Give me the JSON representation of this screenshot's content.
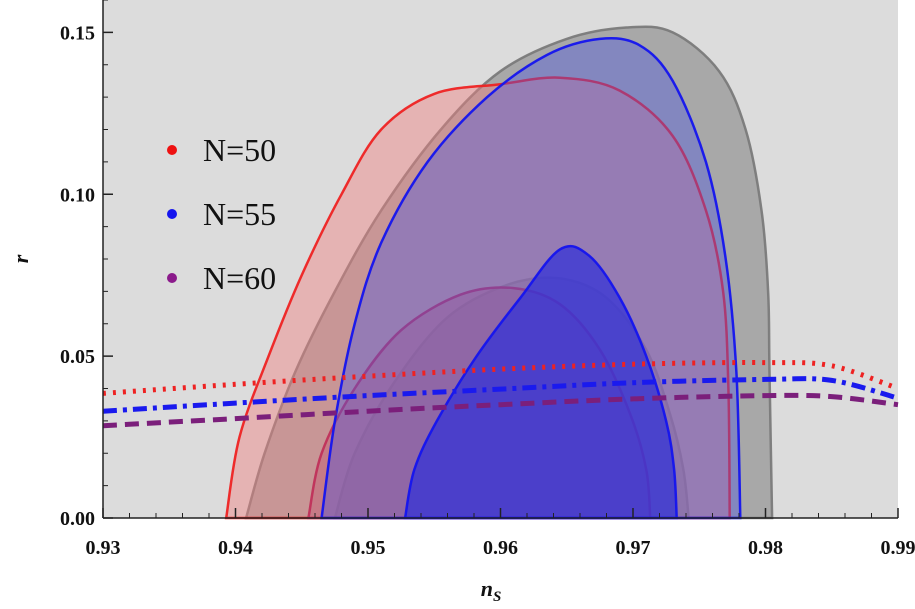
{
  "chart_data": {
    "type": "contour",
    "title": "",
    "xlabel": "n",
    "xlabel_subscript": "S",
    "ylabel": "r",
    "xlim": [
      0.93,
      0.99
    ],
    "ylim": [
      0.0,
      0.16
    ],
    "grid": false,
    "background": "#dcdcdc",
    "x_ticks": [
      "0.93",
      "0.94",
      "0.95",
      "0.96",
      "0.97",
      "0.98",
      "0.99"
    ],
    "y_ticks": [
      "0.00",
      "0.05",
      "0.10",
      "0.15"
    ],
    "legend": {
      "placement": "left",
      "entries": [
        {
          "label": "N=50",
          "color": "#ee1111"
        },
        {
          "label": "N=55",
          "color": "#1515ee"
        },
        {
          "label": "N=60",
          "color": "#8b1a8b"
        }
      ]
    },
    "contours": [
      {
        "name": "gray-95",
        "fill": "#8c8c8c",
        "fill_opacity": 0.65,
        "stroke": "#7a7a7a",
        "points": [
          [
            0.9408,
            0
          ],
          [
            0.9422,
            0.02
          ],
          [
            0.9445,
            0.045
          ],
          [
            0.9475,
            0.07
          ],
          [
            0.951,
            0.095
          ],
          [
            0.9555,
            0.12
          ],
          [
            0.96,
            0.138
          ],
          [
            0.965,
            0.148
          ],
          [
            0.9695,
            0.1515
          ],
          [
            0.973,
            0.15
          ],
          [
            0.9765,
            0.138
          ],
          [
            0.9785,
            0.12
          ],
          [
            0.9797,
            0.095
          ],
          [
            0.9802,
            0.07
          ],
          [
            0.9803,
            0.045
          ],
          [
            0.9805,
            0
          ]
        ]
      },
      {
        "name": "gray-68",
        "fill": "#7d7d7d",
        "fill_opacity": 0.55,
        "stroke": "#7a7a7a",
        "points": [
          [
            0.9475,
            0
          ],
          [
            0.949,
            0.02
          ],
          [
            0.952,
            0.042
          ],
          [
            0.956,
            0.062
          ],
          [
            0.9605,
            0.072
          ],
          [
            0.9645,
            0.074
          ],
          [
            0.968,
            0.068
          ],
          [
            0.971,
            0.052
          ],
          [
            0.9728,
            0.032
          ],
          [
            0.9738,
            0.015
          ],
          [
            0.9742,
            0
          ]
        ]
      },
      {
        "name": "red-95",
        "fill": "#f08080",
        "fill_opacity": 0.45,
        "stroke": "#ee2222",
        "points": [
          [
            0.9393,
            0
          ],
          [
            0.9403,
            0.025
          ],
          [
            0.9425,
            0.05
          ],
          [
            0.945,
            0.075
          ],
          [
            0.948,
            0.1
          ],
          [
            0.951,
            0.12
          ],
          [
            0.955,
            0.131
          ],
          [
            0.96,
            0.134
          ],
          [
            0.9645,
            0.136
          ],
          [
            0.969,
            0.132
          ],
          [
            0.973,
            0.118
          ],
          [
            0.9755,
            0.095
          ],
          [
            0.9768,
            0.07
          ],
          [
            0.9772,
            0.04
          ],
          [
            0.9773,
            0
          ]
        ]
      },
      {
        "name": "red-68",
        "fill": "#c45c74",
        "fill_opacity": 0.45,
        "stroke": "#c0305a",
        "points": [
          [
            0.9455,
            0
          ],
          [
            0.9465,
            0.02
          ],
          [
            0.949,
            0.04
          ],
          [
            0.9525,
            0.058
          ],
          [
            0.957,
            0.069
          ],
          [
            0.961,
            0.071
          ],
          [
            0.9645,
            0.066
          ],
          [
            0.9675,
            0.052
          ],
          [
            0.9698,
            0.032
          ],
          [
            0.971,
            0.015
          ],
          [
            0.9713,
            0
          ]
        ]
      },
      {
        "name": "blue-95",
        "fill": "#4b55e0",
        "fill_opacity": 0.4,
        "stroke": "#1414ee",
        "points": [
          [
            0.9465,
            0
          ],
          [
            0.9475,
            0.03
          ],
          [
            0.949,
            0.06
          ],
          [
            0.951,
            0.085
          ],
          [
            0.9545,
            0.11
          ],
          [
            0.959,
            0.13
          ],
          [
            0.9635,
            0.143
          ],
          [
            0.9675,
            0.148
          ],
          [
            0.9705,
            0.146
          ],
          [
            0.973,
            0.135
          ],
          [
            0.9755,
            0.11
          ],
          [
            0.977,
            0.08
          ],
          [
            0.9778,
            0.045
          ],
          [
            0.9781,
            0
          ]
        ]
      },
      {
        "name": "blue-68",
        "fill": "#3030d8",
        "fill_opacity": 0.72,
        "stroke": "#1414ee",
        "points": [
          [
            0.9528,
            0
          ],
          [
            0.9535,
            0.015
          ],
          [
            0.9552,
            0.03
          ],
          [
            0.9582,
            0.05
          ],
          [
            0.9615,
            0.068
          ],
          [
            0.9645,
            0.083
          ],
          [
            0.9667,
            0.081
          ],
          [
            0.969,
            0.068
          ],
          [
            0.971,
            0.05
          ],
          [
            0.9725,
            0.03
          ],
          [
            0.9731,
            0.015
          ],
          [
            0.9733,
            0
          ]
        ]
      }
    ],
    "series": [
      {
        "name": "N=50",
        "color": "#ee2222",
        "dash": "dotted",
        "x": [
          0.93,
          0.94,
          0.95,
          0.96,
          0.97,
          0.98,
          0.985,
          0.99
        ],
        "y": [
          0.0385,
          0.0413,
          0.0438,
          0.046,
          0.0475,
          0.048,
          0.047,
          0.04
        ]
      },
      {
        "name": "N=55",
        "color": "#1a1aee",
        "dash": "dashdot",
        "x": [
          0.93,
          0.94,
          0.95,
          0.96,
          0.97,
          0.98,
          0.985,
          0.99
        ],
        "y": [
          0.033,
          0.0355,
          0.0378,
          0.0398,
          0.0418,
          0.0428,
          0.0425,
          0.037
        ]
      },
      {
        "name": "N=60",
        "color": "#7b1f7b",
        "dash": "dashed",
        "x": [
          0.93,
          0.94,
          0.95,
          0.96,
          0.97,
          0.98,
          0.985,
          0.99
        ],
        "y": [
          0.0285,
          0.0307,
          0.033,
          0.035,
          0.0368,
          0.0378,
          0.0375,
          0.035
        ]
      }
    ]
  }
}
